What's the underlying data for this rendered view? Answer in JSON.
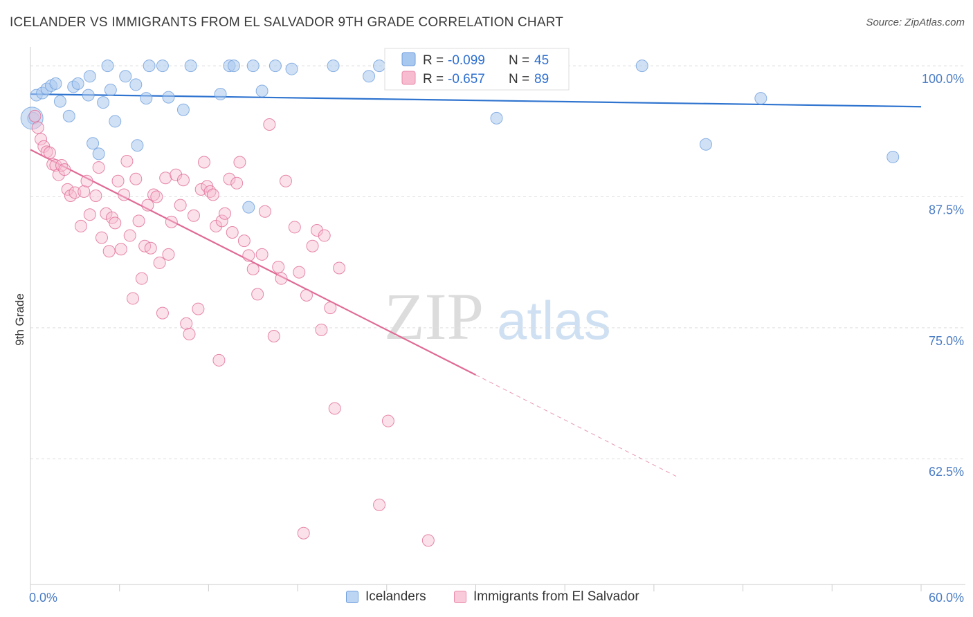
{
  "title": "ICELANDER VS IMMIGRANTS FROM EL SALVADOR 9TH GRADE CORRELATION CHART",
  "source": "Source: ZipAtlas.com",
  "watermark": {
    "zip": "ZIP",
    "atlas": "atlas"
  },
  "legend": {
    "r_label": "R =",
    "n_label": "N =",
    "rows": [
      {
        "r": "-0.099",
        "n": "45",
        "fill": "#a9c8ef",
        "stroke": "#6f9fdc"
      },
      {
        "r": "-0.657",
        "n": "89",
        "fill": "#f7bcd0",
        "stroke": "#e98aab"
      }
    ]
  },
  "bottom_legend": [
    {
      "label": "Icelanders",
      "fill": "#bcd5f3",
      "stroke": "#6f9fdc"
    },
    {
      "label": "Immigrants from El Salvador",
      "fill": "#f9cbda",
      "stroke": "#e98aab"
    }
  ],
  "chart_data": {
    "type": "scatter",
    "title": "ICELANDER VS IMMIGRANTS FROM EL SALVADOR 9TH GRADE CORRELATION CHART",
    "xlabel": "",
    "ylabel": "9th Grade",
    "xlim": [
      0,
      60
    ],
    "ylim": [
      50.5,
      101
    ],
    "x_tick_labels": [
      "0.0%",
      "60.0%"
    ],
    "y_ticks": [
      62.5,
      75.0,
      87.5,
      100.0
    ],
    "y_tick_labels": [
      "62.5%",
      "75.0%",
      "87.5%",
      "100.0%"
    ],
    "grid": "horizontal dashed",
    "legend_position": "top-center",
    "series": [
      {
        "name": "Icelanders",
        "color": "#6f9fdc",
        "fill": "#a9c8ef",
        "trend": {
          "x0": 0,
          "y0": 97.3,
          "x1": 60,
          "y1": 96.1,
          "solid_until": 60
        },
        "points": [
          [
            0.2,
            95.0
          ],
          [
            0.4,
            97.2
          ],
          [
            0.8,
            97.4
          ],
          [
            1.1,
            97.8
          ],
          [
            1.4,
            98.1
          ],
          [
            1.7,
            98.3
          ],
          [
            2.0,
            96.6
          ],
          [
            2.6,
            95.2
          ],
          [
            2.9,
            98.0
          ],
          [
            3.2,
            98.3
          ],
          [
            3.9,
            97.2
          ],
          [
            4.0,
            99.0
          ],
          [
            4.2,
            92.6
          ],
          [
            4.6,
            91.6
          ],
          [
            4.9,
            96.5
          ],
          [
            5.2,
            100.0
          ],
          [
            5.4,
            97.7
          ],
          [
            5.7,
            94.7
          ],
          [
            6.4,
            99.0
          ],
          [
            7.1,
            98.2
          ],
          [
            7.2,
            92.4
          ],
          [
            7.8,
            96.9
          ],
          [
            8.0,
            100.0
          ],
          [
            8.9,
            100.0
          ],
          [
            9.3,
            97.0
          ],
          [
            10.3,
            95.8
          ],
          [
            10.8,
            100.0
          ],
          [
            12.8,
            97.3
          ],
          [
            13.4,
            100.0
          ],
          [
            13.7,
            100.0
          ],
          [
            14.7,
            86.5
          ],
          [
            15.0,
            100.0
          ],
          [
            15.6,
            97.6
          ],
          [
            16.5,
            100.0
          ],
          [
            17.6,
            99.7
          ],
          [
            20.4,
            100.0
          ],
          [
            22.8,
            99.0
          ],
          [
            23.5,
            100.0
          ],
          [
            27.2,
            100.0
          ],
          [
            31.4,
            95.0
          ],
          [
            41.2,
            100.0
          ],
          [
            45.5,
            92.5
          ],
          [
            49.2,
            96.9
          ],
          [
            58.1,
            91.3
          ],
          [
            0.1,
            95.0
          ]
        ]
      },
      {
        "name": "Immigrants from El Salvador",
        "color": "#e06a95",
        "fill": "#f7bcd0",
        "trend": {
          "x0": 0,
          "y0": 92.0,
          "x1": 60,
          "y1": 49.0,
          "solid_until": 30.0
        },
        "points": [
          [
            0.3,
            95.2
          ],
          [
            0.5,
            94.1
          ],
          [
            0.7,
            93.0
          ],
          [
            0.9,
            92.3
          ],
          [
            1.1,
            91.8
          ],
          [
            1.3,
            91.7
          ],
          [
            1.5,
            90.6
          ],
          [
            1.7,
            90.5
          ],
          [
            1.9,
            89.6
          ],
          [
            2.1,
            90.5
          ],
          [
            2.3,
            90.1
          ],
          [
            2.5,
            88.2
          ],
          [
            2.7,
            87.6
          ],
          [
            3.0,
            87.9
          ],
          [
            3.4,
            84.7
          ],
          [
            3.6,
            88.0
          ],
          [
            3.8,
            89.0
          ],
          [
            4.0,
            85.8
          ],
          [
            4.4,
            87.6
          ],
          [
            4.6,
            90.3
          ],
          [
            4.8,
            83.6
          ],
          [
            5.1,
            85.9
          ],
          [
            5.3,
            82.3
          ],
          [
            5.5,
            85.5
          ],
          [
            5.7,
            85.0
          ],
          [
            5.9,
            89.0
          ],
          [
            6.1,
            82.5
          ],
          [
            6.3,
            87.7
          ],
          [
            6.5,
            90.9
          ],
          [
            6.7,
            83.8
          ],
          [
            6.9,
            77.8
          ],
          [
            7.1,
            89.2
          ],
          [
            7.3,
            85.2
          ],
          [
            7.5,
            79.7
          ],
          [
            7.7,
            82.8
          ],
          [
            7.9,
            86.7
          ],
          [
            8.1,
            82.6
          ],
          [
            8.3,
            87.7
          ],
          [
            8.5,
            87.5
          ],
          [
            8.7,
            81.2
          ],
          [
            8.9,
            76.4
          ],
          [
            9.1,
            89.3
          ],
          [
            9.3,
            82.0
          ],
          [
            9.5,
            85.1
          ],
          [
            9.8,
            89.6
          ],
          [
            10.1,
            86.7
          ],
          [
            10.3,
            89.1
          ],
          [
            10.5,
            75.4
          ],
          [
            10.7,
            74.4
          ],
          [
            11.0,
            85.7
          ],
          [
            11.3,
            76.8
          ],
          [
            11.5,
            88.2
          ],
          [
            11.7,
            90.8
          ],
          [
            11.9,
            88.5
          ],
          [
            12.1,
            88.0
          ],
          [
            12.3,
            87.7
          ],
          [
            12.5,
            84.7
          ],
          [
            12.7,
            71.9
          ],
          [
            12.9,
            85.2
          ],
          [
            13.1,
            85.9
          ],
          [
            13.4,
            89.2
          ],
          [
            13.6,
            84.1
          ],
          [
            13.9,
            88.8
          ],
          [
            14.1,
            90.8
          ],
          [
            14.4,
            83.3
          ],
          [
            14.7,
            81.9
          ],
          [
            15.0,
            80.6
          ],
          [
            15.3,
            78.2
          ],
          [
            15.6,
            82.0
          ],
          [
            15.8,
            86.1
          ],
          [
            16.1,
            94.4
          ],
          [
            16.4,
            74.2
          ],
          [
            16.7,
            80.8
          ],
          [
            16.9,
            79.7
          ],
          [
            17.2,
            89.0
          ],
          [
            17.8,
            84.6
          ],
          [
            18.1,
            80.3
          ],
          [
            18.4,
            55.4
          ],
          [
            18.6,
            78.1
          ],
          [
            19.0,
            82.8
          ],
          [
            19.3,
            84.3
          ],
          [
            19.6,
            74.8
          ],
          [
            19.8,
            83.8
          ],
          [
            20.2,
            76.9
          ],
          [
            20.5,
            67.3
          ],
          [
            20.8,
            80.7
          ],
          [
            23.5,
            58.1
          ],
          [
            24.1,
            66.1
          ],
          [
            26.8,
            54.7
          ]
        ]
      }
    ]
  }
}
